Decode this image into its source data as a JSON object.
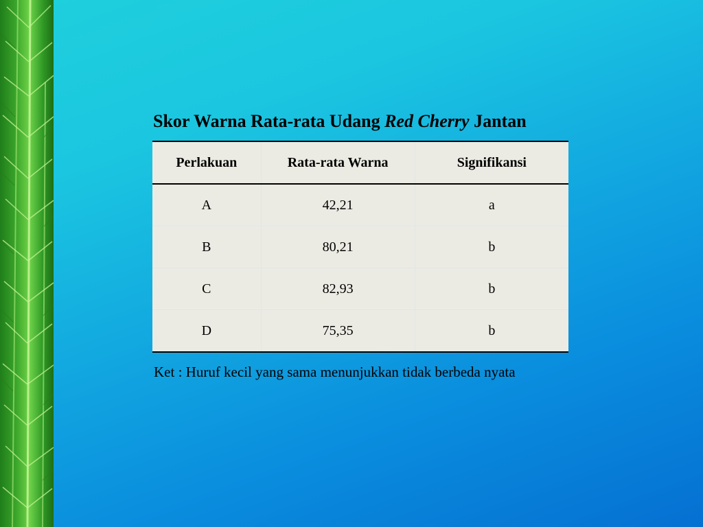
{
  "slide": {
    "title_part1": "Skor Warna Rata-rata Udang ",
    "title_italic": "Red Cherry",
    "title_part2": " Jantan",
    "note": "Ket : Huruf kecil yang sama menunjukkan tidak berbeda nyata"
  },
  "table": {
    "headers": [
      "Perlakuan",
      "Rata-rata Warna",
      "Signifikansi"
    ],
    "rows": [
      [
        "A",
        "42,21",
        "a"
      ],
      [
        "B",
        "80,21",
        "b"
      ],
      [
        "C",
        "82,93",
        "b"
      ],
      [
        "D",
        "75,35",
        "b"
      ]
    ]
  },
  "colors": {
    "background_top": "#1fd0dc",
    "background_bottom": "#0570d2",
    "table_fill": "#ecebe3",
    "plant_green": "#3aa52a"
  }
}
